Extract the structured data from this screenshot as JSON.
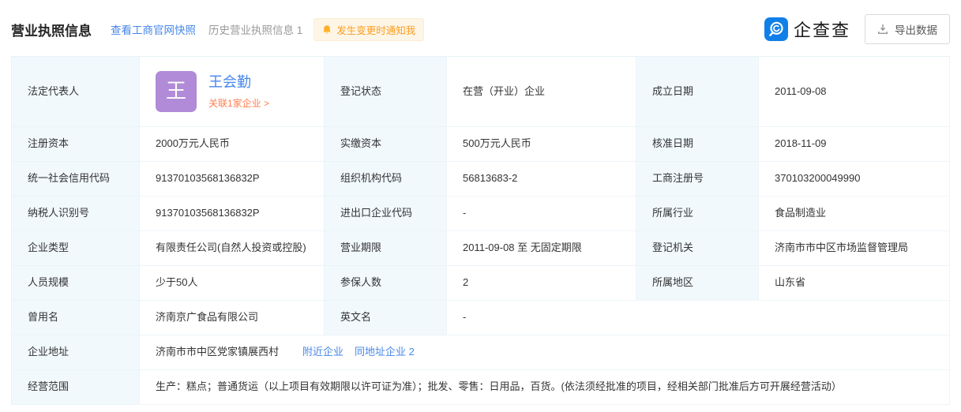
{
  "header": {
    "title": "营业执照信息",
    "snapshot_link": "查看工商官网快照",
    "history_link": "历史营业执照信息 1",
    "notify_badge": "发生变更时通知我",
    "brand_name": "企查查",
    "export_button": "导出数据"
  },
  "colors": {
    "link_blue": "#4787ea",
    "related_orange": "#ff7d4e",
    "badge_orange": "#ff9c1f",
    "badge_bg": "#fdf6e7",
    "avatar_purple": "#b18bd8",
    "brand_blue": "#1080e8",
    "label_cell_bg": "#f1f9fd",
    "border": "#edf4f8"
  },
  "legal_rep": {
    "avatar_char": "王",
    "name": "王会勤",
    "related_link": "关联1家企业 >"
  },
  "address": {
    "text": "济南市市中区党家镇展西村",
    "nearby_link": "附近企业",
    "same_address_link": "同地址企业 2"
  },
  "table": {
    "rows": [
      {
        "tall": true,
        "cells": [
          {
            "kind": "label",
            "text": "法定代表人"
          },
          {
            "kind": "person"
          },
          {
            "kind": "label",
            "text": "登记状态"
          },
          {
            "kind": "value",
            "text": "在营（开业）企业"
          },
          {
            "kind": "label",
            "text": "成立日期"
          },
          {
            "kind": "value",
            "text": "2011-09-08"
          }
        ]
      },
      {
        "cells": [
          {
            "kind": "label",
            "text": "注册资本"
          },
          {
            "kind": "value",
            "text": "2000万元人民币"
          },
          {
            "kind": "label",
            "text": "实缴资本"
          },
          {
            "kind": "value",
            "text": "500万元人民币"
          },
          {
            "kind": "label",
            "text": "核准日期"
          },
          {
            "kind": "value",
            "text": "2018-11-09"
          }
        ]
      },
      {
        "cells": [
          {
            "kind": "label",
            "text": "统一社会信用代码"
          },
          {
            "kind": "value",
            "text": "91370103568136832P"
          },
          {
            "kind": "label",
            "text": "组织机构代码"
          },
          {
            "kind": "value",
            "text": "56813683-2"
          },
          {
            "kind": "label",
            "text": "工商注册号"
          },
          {
            "kind": "value",
            "text": "370103200049990"
          }
        ]
      },
      {
        "cells": [
          {
            "kind": "label",
            "text": "纳税人识别号"
          },
          {
            "kind": "value",
            "text": "91370103568136832P"
          },
          {
            "kind": "label",
            "text": "进出口企业代码"
          },
          {
            "kind": "value",
            "text": "-"
          },
          {
            "kind": "label",
            "text": "所属行业"
          },
          {
            "kind": "value",
            "text": "食品制造业"
          }
        ]
      },
      {
        "cells": [
          {
            "kind": "label",
            "text": "企业类型"
          },
          {
            "kind": "value",
            "text": "有限责任公司(自然人投资或控股)"
          },
          {
            "kind": "label",
            "text": "营业期限"
          },
          {
            "kind": "value",
            "text": "2011-09-08 至 无固定期限"
          },
          {
            "kind": "label",
            "text": "登记机关"
          },
          {
            "kind": "value",
            "text": "济南市市中区市场监督管理局"
          }
        ]
      },
      {
        "cells": [
          {
            "kind": "label",
            "text": "人员规模"
          },
          {
            "kind": "value",
            "text": "少于50人"
          },
          {
            "kind": "label",
            "text": "参保人数"
          },
          {
            "kind": "value",
            "text": "2"
          },
          {
            "kind": "label",
            "text": "所属地区"
          },
          {
            "kind": "value",
            "text": "山东省"
          }
        ]
      },
      {
        "cells": [
          {
            "kind": "label",
            "text": "曾用名"
          },
          {
            "kind": "value",
            "text": "济南京广食品有限公司"
          },
          {
            "kind": "label",
            "text": "英文名"
          },
          {
            "kind": "value",
            "text": "-",
            "span": 3
          }
        ]
      },
      {
        "cells": [
          {
            "kind": "label",
            "text": "企业地址"
          },
          {
            "kind": "address",
            "span": 5
          }
        ]
      },
      {
        "cells": [
          {
            "kind": "label",
            "text": "经营范围"
          },
          {
            "kind": "value",
            "text": "生产：糕点；普通货运（以上项目有效期限以许可证为准）；批发、零售：日用品，百货。(依法须经批准的项目，经相关部门批准后方可开展经营活动）",
            "span": 5
          }
        ]
      }
    ]
  }
}
